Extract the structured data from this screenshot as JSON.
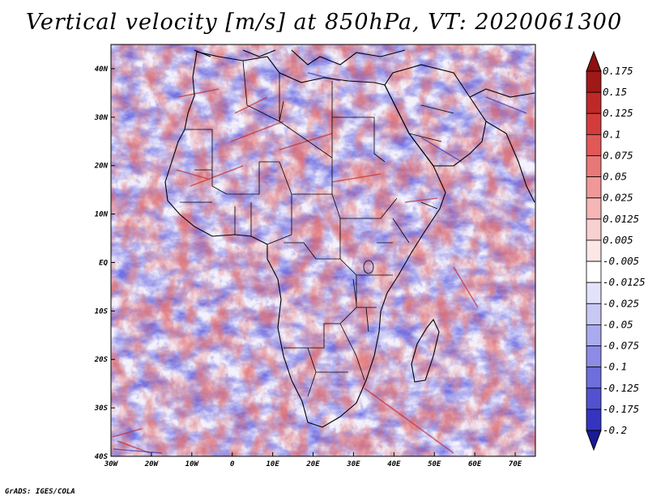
{
  "title": "Vertical velocity [m/s] at 850hPa, VT: 2020061300",
  "footer": "GrADS: IGES/COLA",
  "map": {
    "variable": "Vertical velocity",
    "units": "m/s",
    "level": "850hPa",
    "valid_time": "2020061300",
    "lon_range": [
      -30,
      75
    ],
    "lat_range": [
      -40,
      45
    ],
    "x_ticks": [
      {
        "value": -30,
        "label": "30W"
      },
      {
        "value": -20,
        "label": "20W"
      },
      {
        "value": -10,
        "label": "10W"
      },
      {
        "value": 0,
        "label": "0"
      },
      {
        "value": 10,
        "label": "10E"
      },
      {
        "value": 20,
        "label": "20E"
      },
      {
        "value": 30,
        "label": "30E"
      },
      {
        "value": 40,
        "label": "40E"
      },
      {
        "value": 50,
        "label": "50E"
      },
      {
        "value": 60,
        "label": "60E"
      },
      {
        "value": 70,
        "label": "70E"
      }
    ],
    "y_ticks": [
      {
        "value": 40,
        "label": "40N"
      },
      {
        "value": 30,
        "label": "30N"
      },
      {
        "value": 20,
        "label": "20N"
      },
      {
        "value": 10,
        "label": "10N"
      },
      {
        "value": 0,
        "label": "EQ"
      },
      {
        "value": -10,
        "label": "10S"
      },
      {
        "value": -20,
        "label": "20S"
      },
      {
        "value": -30,
        "label": "30S"
      },
      {
        "value": -40,
        "label": "40S"
      }
    ]
  },
  "colorbar": {
    "levels": [
      {
        "label": "0.175",
        "color": "#a01818"
      },
      {
        "label": "0.15",
        "color": "#bf2828"
      },
      {
        "label": "0.125",
        "color": "#d43c3c"
      },
      {
        "label": "0.1",
        "color": "#e05858"
      },
      {
        "label": "0.075",
        "color": "#e87878"
      },
      {
        "label": "0.05",
        "color": "#f09898"
      },
      {
        "label": "0.025",
        "color": "#f5b6b6"
      },
      {
        "label": "0.0125",
        "color": "#f9d0d0"
      },
      {
        "label": "0.005",
        "color": "#fce6e6"
      },
      {
        "label": "-0.005",
        "color": "#ffffff"
      },
      {
        "label": "-0.0125",
        "color": "#e2e2fa"
      },
      {
        "label": "-0.025",
        "color": "#c8c8f4"
      },
      {
        "label": "-0.05",
        "color": "#aaaaee"
      },
      {
        "label": "-0.075",
        "color": "#8c8ce6"
      },
      {
        "label": "-0.1",
        "color": "#6e6edc"
      },
      {
        "label": "-0.125",
        "color": "#5252d0"
      },
      {
        "label": "-0.175",
        "color": "#3434c0"
      },
      {
        "label": "-0.2",
        "color": "#2020a6"
      }
    ],
    "top_triangle_color": "#901010",
    "bottom_triangle_color": "#1a1a96"
  }
}
